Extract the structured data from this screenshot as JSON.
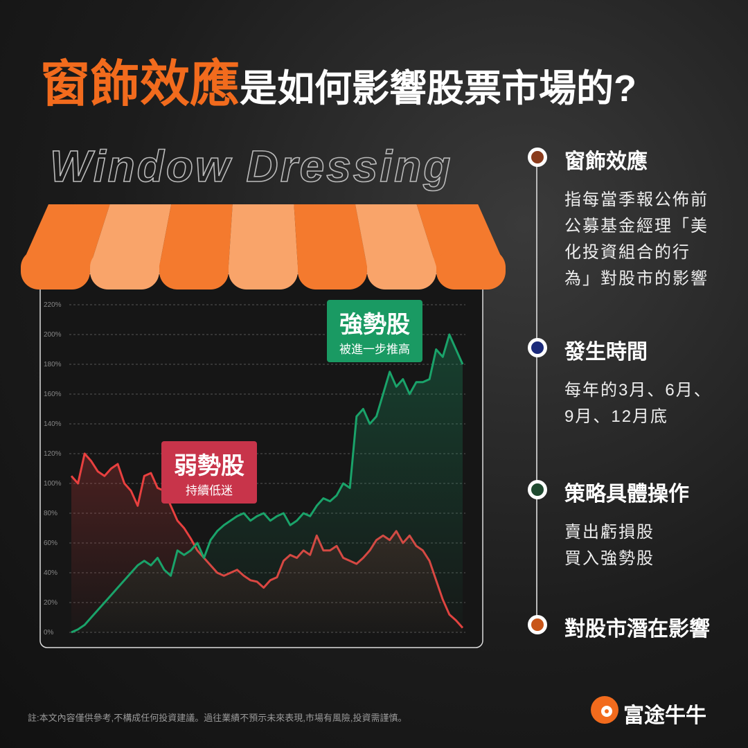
{
  "title": {
    "highlight": "窗飾效應",
    "rest": "是如何影響股票市場的?"
  },
  "subtitle": "Window Dressing",
  "chart_data": {
    "type": "line",
    "ylim": [
      0,
      220
    ],
    "yticks": [
      {
        "value": 0,
        "label": "0%"
      },
      {
        "value": 20,
        "label": "20%"
      },
      {
        "value": 40,
        "label": "40%"
      },
      {
        "value": 60,
        "label": "60%"
      },
      {
        "value": 80,
        "label": "80%"
      },
      {
        "value": 100,
        "label": "100%"
      },
      {
        "value": 120,
        "label": "120%"
      },
      {
        "value": 140,
        "label": "140%"
      },
      {
        "value": 160,
        "label": "160%"
      },
      {
        "value": 180,
        "label": "180%"
      },
      {
        "value": 200,
        "label": "200%"
      },
      {
        "value": 220,
        "label": "220%"
      }
    ],
    "grid": true,
    "series": [
      {
        "name": "弱勢股",
        "annotation": "持續低迷",
        "color": "#e8403f",
        "values": [
          105,
          100,
          120,
          115,
          108,
          105,
          110,
          113,
          100,
          95,
          85,
          105,
          107,
          97,
          95,
          85,
          75,
          70,
          63,
          55,
          50,
          45,
          40,
          38,
          40,
          42,
          38,
          35,
          34,
          30,
          35,
          37,
          48,
          52,
          50,
          55,
          52,
          65,
          55,
          55,
          58,
          50,
          48,
          46,
          50,
          55,
          62,
          65,
          62,
          68,
          60,
          65,
          58,
          55,
          48,
          35,
          22,
          12,
          8,
          3
        ]
      },
      {
        "name": "強勢股",
        "annotation": "被進一步推高",
        "color": "#1aa36a",
        "values": [
          0,
          2,
          5,
          10,
          15,
          20,
          25,
          30,
          35,
          40,
          45,
          48,
          45,
          50,
          42,
          38,
          55,
          52,
          55,
          60,
          50,
          62,
          68,
          72,
          75,
          78,
          80,
          75,
          78,
          80,
          75,
          78,
          80,
          72,
          75,
          80,
          78,
          85,
          90,
          88,
          92,
          100,
          97,
          145,
          150,
          140,
          145,
          160,
          175,
          165,
          170,
          160,
          168,
          168,
          170,
          190,
          185,
          200,
          190,
          180
        ]
      }
    ]
  },
  "timeline": [
    {
      "title": "窗飾效應",
      "lines": [
        "指每當季報公佈前",
        "公募基金經理「美",
        "化投資組合的行",
        "為」對股市的影響"
      ]
    },
    {
      "title": "發生時間",
      "lines": [
        "每年的3月、6月、",
        "9月、12月底"
      ]
    },
    {
      "title": "策略具體操作",
      "lines": [
        "賣出虧損股",
        "買入強勢股"
      ]
    },
    {
      "title": "對股市潛在影響",
      "lines": []
    }
  ],
  "footer": "註:本文內容僅供參考,不構成任何投資建議。過往業績不預示未來表現,市場有風險,投資需謹慎。",
  "brand": "富途牛牛"
}
